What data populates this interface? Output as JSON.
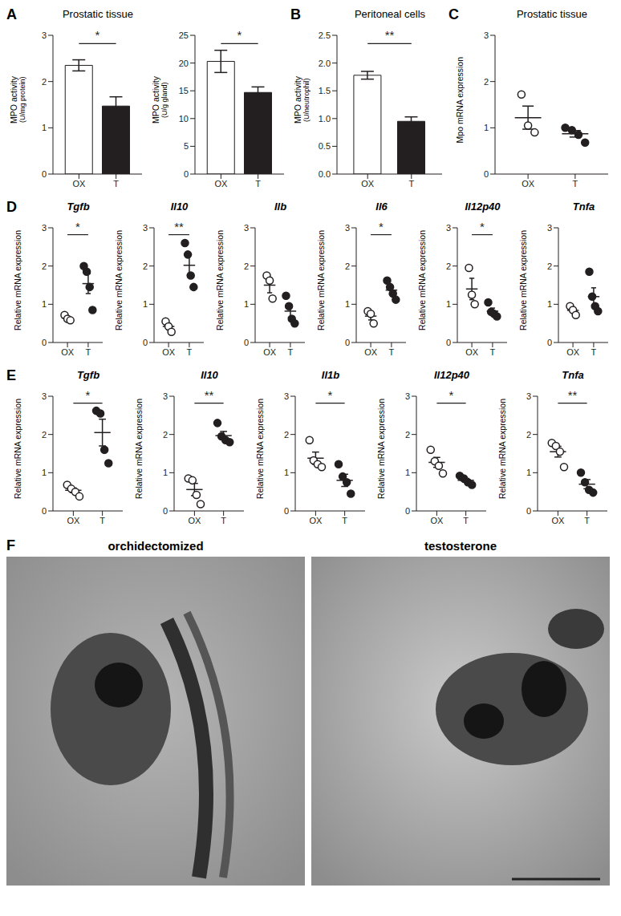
{
  "chart_data": [
    {
      "type": "bar",
      "panel": "A",
      "title": "Prostatic tissue",
      "y_label": "MPO activity",
      "y_sublabel": "(U/mg protein)",
      "categories": [
        "OX",
        "T"
      ],
      "values": [
        2.35,
        1.47
      ],
      "errors": [
        0.12,
        0.2
      ],
      "colors": [
        "#ffffff",
        "#231f20"
      ],
      "ylim": [
        0,
        3
      ],
      "yticks": [
        0,
        1,
        2,
        3
      ],
      "significance": "*"
    },
    {
      "type": "bar",
      "y_label": "MPO activity",
      "y_sublabel": "(U/g gland)",
      "categories": [
        "OX",
        "T"
      ],
      "values": [
        20.3,
        14.7
      ],
      "errors": [
        2.0,
        1.0
      ],
      "colors": [
        "#ffffff",
        "#231f20"
      ],
      "ylim": [
        0,
        25
      ],
      "yticks": [
        0,
        5,
        10,
        15,
        20,
        25
      ],
      "significance": "*"
    },
    {
      "type": "bar",
      "panel": "B",
      "title": "Peritoneal cells",
      "y_label": "MPO activity",
      "y_sublabel": "(U/neutrophil)",
      "categories": [
        "OX",
        "T"
      ],
      "values": [
        1.78,
        0.95
      ],
      "errors": [
        0.07,
        0.08
      ],
      "colors": [
        "#ffffff",
        "#231f20"
      ],
      "ylim": [
        0,
        2.5
      ],
      "yticks": [
        {
          "value": 0,
          "label": "0.0"
        },
        {
          "value": 0.5,
          "label": "0.5"
        },
        {
          "value": 1,
          "label": "1.0"
        },
        {
          "value": 1.5,
          "label": "1.5"
        },
        {
          "value": 2,
          "label": "2.0"
        },
        {
          "value": 2.5,
          "label": "2.5"
        }
      ],
      "significance": "**"
    },
    {
      "type": "scatter",
      "panel": "C",
      "title": "Prostatic tissue",
      "y_label": "Mpo mRNA expression",
      "categories": [
        "OX",
        "T"
      ],
      "points": [
        [
          1.72,
          1.05,
          0.9
        ],
        [
          1.0,
          0.95,
          0.85,
          0.68
        ]
      ],
      "means": [
        1.22,
        0.87
      ],
      "errors": [
        0.25,
        0.07
      ],
      "colors": [
        "#ffffff",
        "#231f20"
      ],
      "ylim": [
        0,
        3
      ],
      "yticks": [
        0,
        1,
        2,
        3
      ]
    },
    {
      "type": "scatter",
      "panel": "D",
      "title": "Tgfb",
      "y_label": "Relative mRNA expression",
      "categories": [
        "OX",
        "T"
      ],
      "points": [
        [
          0.72,
          0.62,
          0.58
        ],
        [
          2.0,
          1.85,
          1.45,
          0.85
        ]
      ],
      "means": [
        0.64,
        1.54
      ],
      "errors": [
        0.04,
        0.26
      ],
      "colors": [
        "#ffffff",
        "#231f20"
      ],
      "ylim": [
        0,
        3
      ],
      "yticks": [
        0,
        1,
        2,
        3
      ],
      "significance": "*"
    },
    {
      "type": "scatter",
      "title": "Il10",
      "y_label": "Relative mRNA expression",
      "categories": [
        "OX",
        "T"
      ],
      "points": [
        [
          0.55,
          0.42,
          0.28
        ],
        [
          2.6,
          2.3,
          1.75,
          1.45
        ]
      ],
      "means": [
        0.42,
        2.02
      ],
      "errors": [
        0.08,
        0.26
      ],
      "colors": [
        "#ffffff",
        "#231f20"
      ],
      "ylim": [
        0,
        3
      ],
      "yticks": [
        0,
        1,
        2,
        3
      ],
      "significance": "**"
    },
    {
      "type": "scatter",
      "title": "Ilb",
      "y_label": "Relative mRNA expression",
      "categories": [
        "OX",
        "T"
      ],
      "points": [
        [
          1.75,
          1.62,
          1.15
        ],
        [
          1.22,
          0.95,
          0.62,
          0.5
        ]
      ],
      "means": [
        1.5,
        0.82
      ],
      "errors": [
        0.2,
        0.16
      ],
      "colors": [
        "#ffffff",
        "#231f20"
      ],
      "ylim": [
        0,
        3
      ],
      "yticks": [
        0,
        1,
        2,
        3
      ]
    },
    {
      "type": "scatter",
      "title": "Il6",
      "y_label": "Relative mRNA expression",
      "categories": [
        "OX",
        "T"
      ],
      "points": [
        [
          0.82,
          0.75,
          0.5
        ],
        [
          1.62,
          1.45,
          1.28,
          1.12
        ]
      ],
      "means": [
        0.69,
        1.37
      ],
      "errors": [
        0.1,
        0.11
      ],
      "colors": [
        "#ffffff",
        "#231f20"
      ],
      "ylim": [
        0,
        3
      ],
      "yticks": [
        0,
        1,
        2,
        3
      ],
      "significance": "*"
    },
    {
      "type": "scatter",
      "title": "Il12p40",
      "y_label": "Relative mRNA expression",
      "categories": [
        "OX",
        "T"
      ],
      "points": [
        [
          1.95,
          1.25,
          1.0
        ],
        [
          1.05,
          0.8,
          0.75,
          0.68
        ]
      ],
      "means": [
        1.4,
        0.82
      ],
      "errors": [
        0.28,
        0.08
      ],
      "colors": [
        "#ffffff",
        "#231f20"
      ],
      "ylim": [
        0,
        3
      ],
      "yticks": [
        0,
        1,
        2,
        3
      ],
      "significance": "*"
    },
    {
      "type": "scatter",
      "title": "Tnfa",
      "y_label": "Relative mRNA expression",
      "categories": [
        "OX",
        "T"
      ],
      "points": [
        [
          0.95,
          0.85,
          0.72
        ],
        [
          1.85,
          1.2,
          0.95,
          0.82
        ]
      ],
      "means": [
        0.84,
        1.2
      ],
      "errors": [
        0.07,
        0.23
      ],
      "colors": [
        "#ffffff",
        "#231f20"
      ],
      "ylim": [
        0,
        3
      ],
      "yticks": [
        0,
        1,
        2,
        3
      ]
    },
    {
      "type": "scatter",
      "panel": "E",
      "title": "Tgfb",
      "y_label": "Relative mRNA expression",
      "categories": [
        "OX",
        "T"
      ],
      "points": [
        [
          0.68,
          0.58,
          0.5,
          0.38
        ],
        [
          2.62,
          2.55,
          1.6,
          1.25
        ]
      ],
      "means": [
        0.54,
        2.05
      ],
      "errors": [
        0.06,
        0.35
      ],
      "colors": [
        "#ffffff",
        "#231f20"
      ],
      "ylim": [
        0,
        3
      ],
      "yticks": [
        0,
        1,
        2,
        3
      ],
      "significance": "*"
    },
    {
      "type": "scatter",
      "title": "Il10",
      "y_label": "Relative mRNA expression",
      "categories": [
        "OX",
        "T"
      ],
      "points": [
        [
          0.85,
          0.8,
          0.42,
          0.18
        ],
        [
          2.3,
          1.95,
          1.85,
          1.8
        ]
      ],
      "means": [
        0.56,
        1.97
      ],
      "errors": [
        0.16,
        0.11
      ],
      "colors": [
        "#ffffff",
        "#231f20"
      ],
      "ylim": [
        0,
        3
      ],
      "yticks": [
        0,
        1,
        2,
        3
      ],
      "significance": "**"
    },
    {
      "type": "scatter",
      "title": "Il1b",
      "y_label": "Relative mRNA expression",
      "categories": [
        "OX",
        "T"
      ],
      "points": [
        [
          1.85,
          1.32,
          1.22,
          1.15
        ],
        [
          1.22,
          0.9,
          0.75,
          0.45
        ]
      ],
      "means": [
        1.38,
        0.8
      ],
      "errors": [
        0.16,
        0.16
      ],
      "colors": [
        "#ffffff",
        "#231f20"
      ],
      "ylim": [
        0,
        3
      ],
      "yticks": [
        0,
        1,
        2,
        3
      ],
      "significance": "*"
    },
    {
      "type": "scatter",
      "title": "Il12p40",
      "y_label": "Relative mRNA expression",
      "categories": [
        "OX",
        "T"
      ],
      "points": [
        [
          1.6,
          1.3,
          1.18,
          0.98
        ],
        [
          0.92,
          0.85,
          0.75,
          0.68
        ]
      ],
      "means": [
        1.27,
        0.8
      ],
      "errors": [
        0.13,
        0.05
      ],
      "colors": [
        "#ffffff",
        "#231f20"
      ],
      "ylim": [
        0,
        3
      ],
      "yticks": [
        0,
        1,
        2,
        3
      ],
      "significance": "*"
    },
    {
      "type": "scatter",
      "title": "Tnfa",
      "y_label": "Relative mRNA expression",
      "categories": [
        "OX",
        "T"
      ],
      "points": [
        [
          1.78,
          1.7,
          1.55,
          1.15
        ],
        [
          1.0,
          0.75,
          0.55,
          0.48
        ]
      ],
      "means": [
        1.55,
        0.7
      ],
      "errors": [
        0.14,
        0.12
      ],
      "colors": [
        "#ffffff",
        "#231f20"
      ],
      "ylim": [
        0,
        3
      ],
      "yticks": [
        0,
        1,
        2,
        3
      ],
      "significance": "**"
    }
  ],
  "images": {
    "panel": "F",
    "titles": [
      "orchidectomized",
      "testosterone"
    ]
  }
}
